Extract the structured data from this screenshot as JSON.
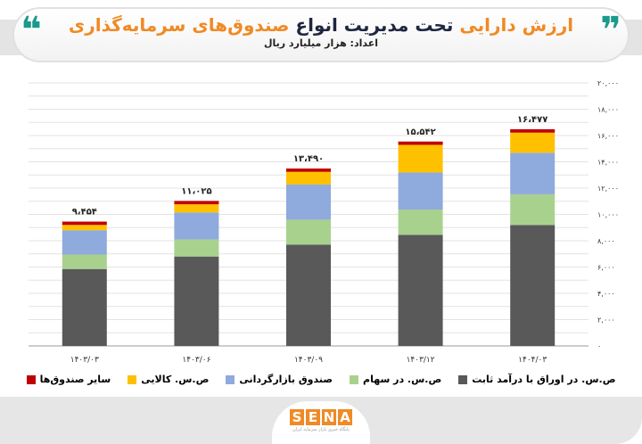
{
  "header": {
    "title_part1": "ارزش دارایی",
    "title_part2": "تحت مدیریت انواع",
    "title_part3": "صندوق‌های سرمایه‌گذاری",
    "subtitle": "اعداد: هزار میلیارد ریال"
  },
  "logo": {
    "text": "SENA",
    "tagline": "پایگاه خبری بازار سرمایه ایران"
  },
  "chart_data": {
    "type": "bar",
    "stacked": true,
    "title": "ارزش دارایی تحت مدیریت انواع صندوق‌های سرمایه‌گذاری",
    "ylabel": "هزار میلیارد ریال",
    "ylim": [
      0,
      20000
    ],
    "grid": true,
    "categories": [
      "۱۴۰۳/۰۳",
      "۱۴۰۳/۰۶",
      "۱۴۰۳/۰۹",
      "۱۴۰۳/۱۲",
      "۱۴۰۴/۰۳"
    ],
    "yticks": [
      0,
      2000,
      4000,
      6000,
      8000,
      10000,
      12000,
      14000,
      16000,
      18000,
      20000
    ],
    "ytick_labels": [
      "۰",
      "۲,۰۰۰",
      "۴,۰۰۰",
      "۶,۰۰۰",
      "۸,۰۰۰",
      "۱۰,۰۰۰",
      "۱۲,۰۰۰",
      "۱۴,۰۰۰",
      "۱۶,۰۰۰",
      "۱۸,۰۰۰",
      "۲۰,۰۰۰"
    ],
    "totals": [
      9454,
      11025,
      13490,
      15542,
      16477
    ],
    "total_labels": [
      "۹،۴۵۴",
      "۱۱،۰۲۵",
      "۱۳،۴۹۰",
      "۱۵،۵۴۲",
      "۱۶،۴۷۷"
    ],
    "series": [
      {
        "name": "ص.س. در اوراق با درآمد ثابت",
        "color": "#595959",
        "values": [
          5850,
          6800,
          7700,
          8450,
          9200
        ]
      },
      {
        "name": "ص.س. در سهام",
        "color": "#a9d18e",
        "values": [
          1100,
          1300,
          1900,
          1920,
          2330
        ]
      },
      {
        "name": "صندوق بازارگردانی",
        "color": "#8faadc",
        "values": [
          1850,
          2050,
          2680,
          2820,
          3160
        ]
      },
      {
        "name": "ص.س. کالایی",
        "color": "#ffc000",
        "values": [
          400,
          620,
          960,
          2100,
          1530
        ]
      },
      {
        "name": "سایر صندوق‌ها",
        "color": "#c00000",
        "values": [
          254,
          255,
          250,
          252,
          257
        ]
      }
    ],
    "legend_position": "bottom"
  }
}
